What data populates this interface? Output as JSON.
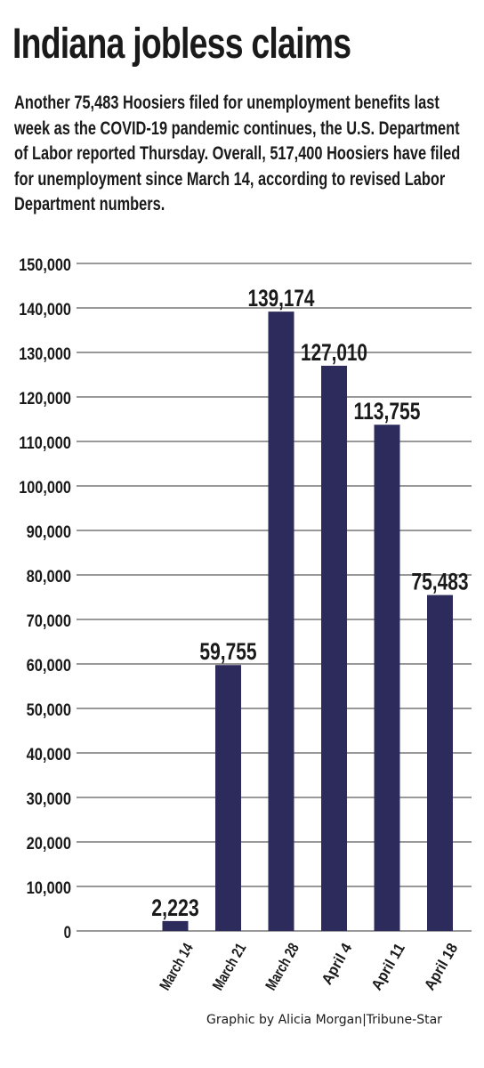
{
  "title": "Indiana jobless claims",
  "description": "Another 75,483 Hoosiers filed for unemployment benefits last week as the COVID-19 pandemic continues, the U.S. Department of Labor reported Thursday. Overall, 517,400 Hoosiers have filed for unemployment since March 14, according to revised Labor Department numbers.",
  "credit": "Graphic by Alicia Morgan|Tribune-Star",
  "chart_data": {
    "type": "bar",
    "categories": [
      "March 14",
      "March 21",
      "March 28",
      "April 4",
      "April 11",
      "April 18"
    ],
    "values": [
      2223,
      59755,
      139174,
      127010,
      113755,
      75483
    ],
    "value_labels": [
      "2,223",
      "59,755",
      "139,174",
      "127,010",
      "113,755",
      "75,483"
    ],
    "ylim": [
      0,
      150000
    ],
    "yticks": [
      0,
      10000,
      20000,
      30000,
      40000,
      50000,
      60000,
      70000,
      80000,
      90000,
      100000,
      110000,
      120000,
      130000,
      140000,
      150000
    ],
    "ytick_labels": [
      "0",
      "10,000",
      "20,000",
      "30,000",
      "40,000",
      "50,000",
      "60,000",
      "70,000",
      "80,000",
      "90,000",
      "100,000",
      "110,000",
      "120,000",
      "130,000",
      "140,000",
      "150,000"
    ],
    "xlabel": "",
    "ylabel": "",
    "grid": true,
    "bar_color": "#2d2b5b",
    "grid_color": "#333333"
  }
}
